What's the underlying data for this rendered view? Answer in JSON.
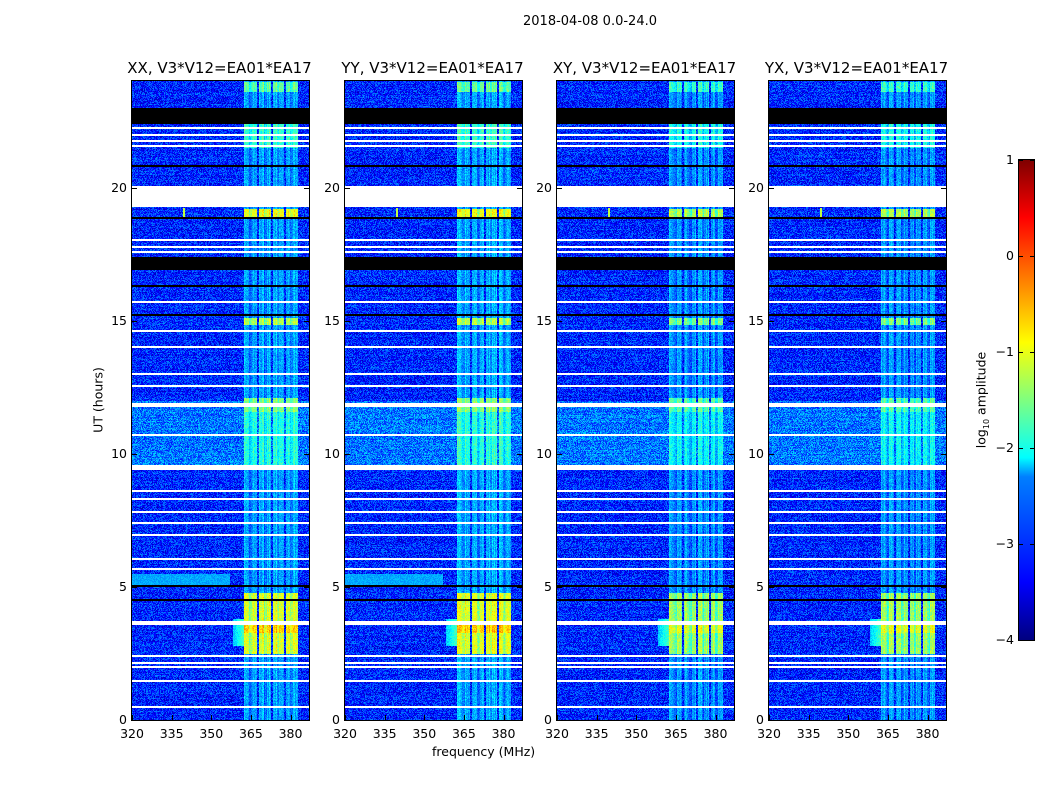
{
  "chart_data": {
    "type": "heatmap",
    "title": "2018-04-08 0.0-24.0",
    "xlabel": "frequency (MHz)",
    "ylabel": "UT (hours)",
    "xlim": [
      320,
      387
    ],
    "ylim": [
      0,
      24
    ],
    "xticks": [
      320,
      335,
      350,
      365,
      380
    ],
    "yticks": [
      0,
      5,
      10,
      15,
      20
    ],
    "panels": [
      {
        "title": "XX, V3*V12=EA01*EA17",
        "rfi_scale": 1.0,
        "broadband_5h": true
      },
      {
        "title": "YY, V3*V12=EA01*EA17",
        "rfi_scale": 1.0,
        "broadband_5h": true
      },
      {
        "title": "XY, V3*V12=EA01*EA17",
        "rfi_scale": 0.85,
        "broadband_5h": false
      },
      {
        "title": "YX, V3*V12=EA01*EA17",
        "rfi_scale": 0.85,
        "broadband_5h": false
      }
    ],
    "background_log10_amplitude": -3.2,
    "rfi_channels_mhz": [
      [
        362.3,
        367.2
      ],
      [
        368.0,
        372.5
      ],
      [
        373.0,
        377.2
      ],
      [
        378.0,
        382.6
      ]
    ],
    "rfi_enhanced_periods": [
      {
        "hours": [
          2.5,
          4.8
        ],
        "level": -1.0
      },
      {
        "hours": [
          3.3,
          3.7
        ],
        "level": -0.6
      },
      {
        "hours": [
          9.5,
          12.0
        ],
        "level": -1.9
      },
      {
        "hours": [
          11.6,
          12.1
        ],
        "level": -1.4
      },
      {
        "hours": [
          14.85,
          15.1
        ],
        "level": -1.2
      },
      {
        "hours": [
          18.9,
          19.2
        ],
        "level": -0.9
      },
      {
        "hours": [
          21.5,
          22.4
        ],
        "level": -1.8
      },
      {
        "hours": [
          23.6,
          24.0
        ],
        "level": -1.6
      }
    ],
    "broadband_periods": [
      {
        "hours": [
          9.5,
          12.0
        ],
        "level": -2.8
      }
    ],
    "flagged_hours_white": [
      [
        19.25,
        20.07
      ],
      [
        22.2,
        22.28
      ],
      [
        21.95,
        22.02
      ],
      [
        21.7,
        21.77
      ],
      [
        21.55,
        21.6
      ],
      [
        18.0,
        18.05
      ],
      [
        17.75,
        17.8
      ],
      [
        17.55,
        17.6
      ],
      [
        15.7,
        15.75
      ],
      [
        14.6,
        14.65
      ],
      [
        14.0,
        14.05
      ],
      [
        13.0,
        13.05
      ],
      [
        12.55,
        12.6
      ],
      [
        11.75,
        11.9
      ],
      [
        10.7,
        10.75
      ],
      [
        9.38,
        9.58
      ],
      [
        8.6,
        8.65
      ],
      [
        8.3,
        8.35
      ],
      [
        7.8,
        7.85
      ],
      [
        7.4,
        7.45
      ],
      [
        6.95,
        7.0
      ],
      [
        6.05,
        6.1
      ],
      [
        5.65,
        5.7
      ],
      [
        3.58,
        3.7
      ],
      [
        2.4,
        2.45
      ],
      [
        2.12,
        2.17
      ],
      [
        1.98,
        2.03
      ],
      [
        1.45,
        1.5
      ],
      [
        0.48,
        0.53
      ]
    ],
    "zero_hours_black": [
      [
        22.4,
        23.0
      ],
      [
        20.8,
        20.85
      ],
      [
        18.85,
        18.9
      ],
      [
        16.9,
        17.4
      ],
      [
        16.25,
        16.35
      ],
      [
        15.2,
        15.25
      ],
      [
        5.0,
        5.06
      ],
      [
        4.48,
        4.53
      ]
    ],
    "colorbar": {
      "label_base": "log",
      "label_sub": "10",
      "label_rest": " amplitude",
      "range": [
        -4,
        1
      ],
      "ticks": [
        "−4",
        "−3",
        "−2",
        "−1",
        "0",
        "1"
      ],
      "colormap": "jet"
    }
  }
}
